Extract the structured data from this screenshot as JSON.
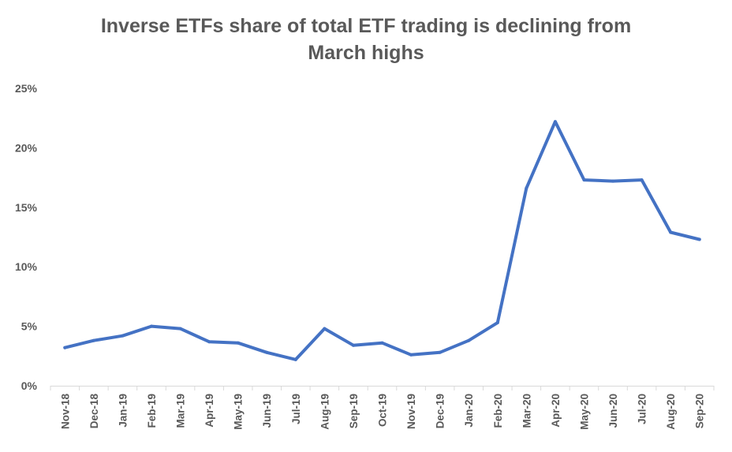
{
  "chart_data": {
    "type": "line",
    "title_lines": [
      "Inverse ETFs share of total ETF trading is declining from",
      "March highs"
    ],
    "xlabel": "",
    "ylabel": "",
    "categories": [
      "Nov-18",
      "Dec-18",
      "Jan-19",
      "Feb-19",
      "Mar-19",
      "Apr-19",
      "May-19",
      "Jun-19",
      "Jul-19",
      "Aug-19",
      "Sep-19",
      "Oct-19",
      "Nov-19",
      "Dec-19",
      "Jan-20",
      "Feb-20",
      "Mar-20",
      "Apr-20",
      "May-20",
      "Jun-20",
      "Jul-20",
      "Aug-20",
      "Sep-20"
    ],
    "series": [
      {
        "values": [
          3.2,
          3.8,
          4.2,
          5.0,
          4.8,
          3.7,
          3.6,
          2.8,
          2.2,
          4.8,
          3.4,
          3.6,
          2.6,
          2.8,
          3.8,
          5.3,
          16.6,
          22.2,
          17.3,
          17.2,
          17.3,
          12.9,
          12.3
        ],
        "color": "#4472C4"
      }
    ],
    "ylim": [
      0,
      25
    ],
    "yticks": [
      0,
      5,
      10,
      15,
      20,
      25
    ],
    "ytick_labels": [
      "0%",
      "5%",
      "10%",
      "15%",
      "20%",
      "25%"
    ],
    "grid": false,
    "legend": "none"
  }
}
